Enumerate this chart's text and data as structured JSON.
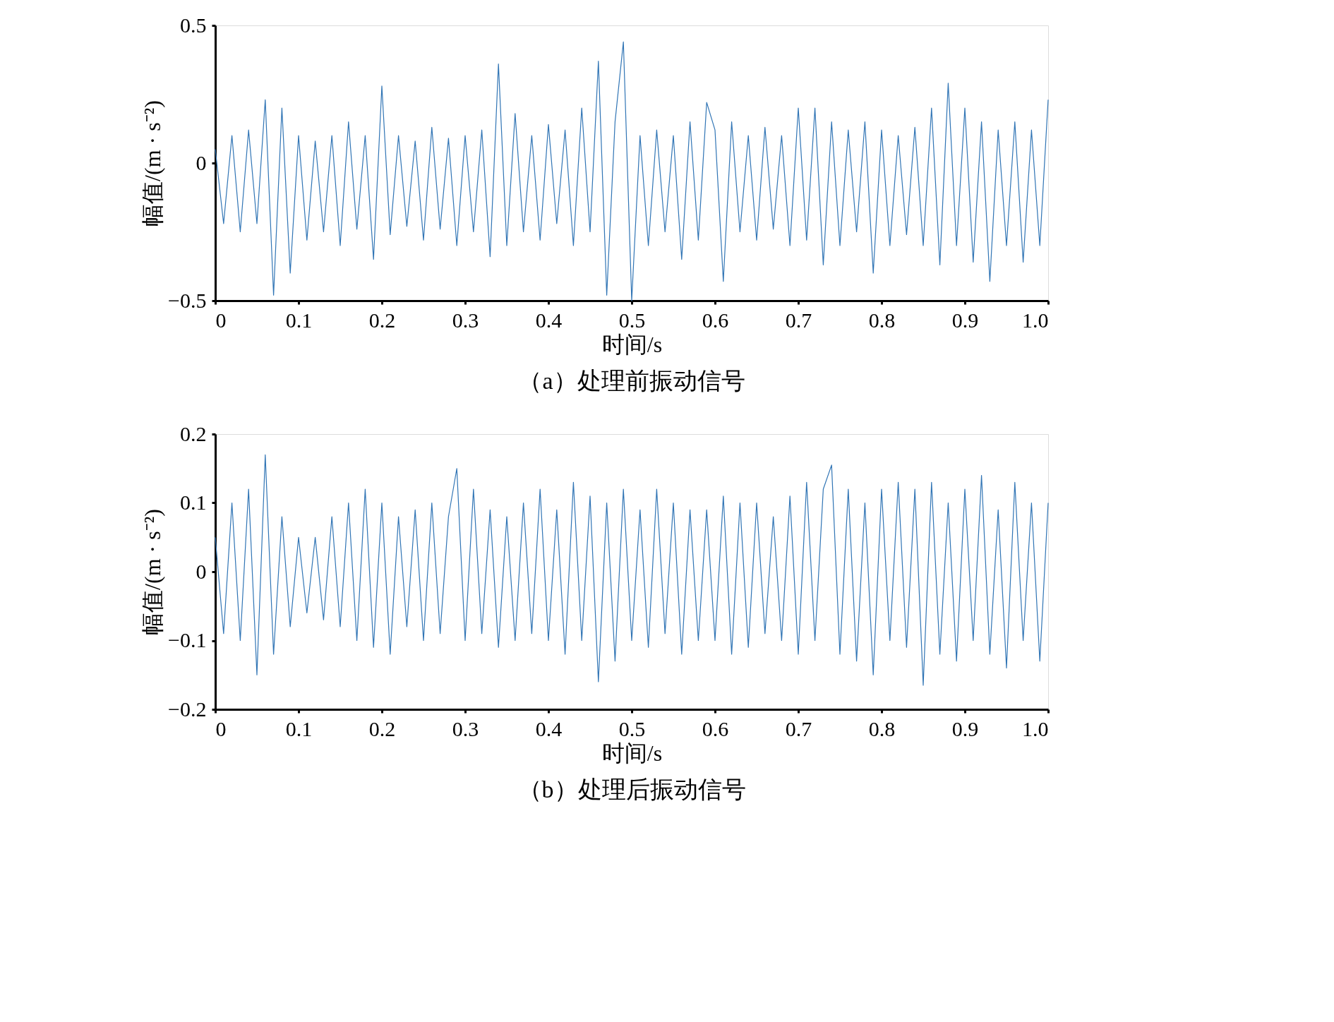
{
  "chart_data": [
    {
      "type": "line",
      "title": "（a）处理前振动信号",
      "xlabel": "时间/s",
      "ylabel": "幅值/(m · s⁻²)",
      "x": [
        0.0,
        0.01,
        0.02,
        0.03,
        0.04,
        0.05,
        0.06,
        0.07,
        0.08,
        0.09,
        0.1,
        0.11,
        0.12,
        0.13,
        0.14,
        0.15,
        0.16,
        0.17,
        0.18,
        0.19,
        0.2,
        0.21,
        0.22,
        0.23,
        0.24,
        0.25,
        0.26,
        0.27,
        0.28,
        0.29,
        0.3,
        0.31,
        0.32,
        0.33,
        0.34,
        0.35,
        0.36,
        0.37,
        0.38,
        0.39,
        0.4,
        0.41,
        0.42,
        0.43,
        0.44,
        0.45,
        0.46,
        0.47,
        0.48,
        0.49,
        0.5,
        0.51,
        0.52,
        0.53,
        0.54,
        0.55,
        0.56,
        0.57,
        0.58,
        0.59,
        0.6,
        0.61,
        0.62,
        0.63,
        0.64,
        0.65,
        0.66,
        0.67,
        0.68,
        0.69,
        0.7,
        0.71,
        0.72,
        0.73,
        0.74,
        0.75,
        0.76,
        0.77,
        0.78,
        0.79,
        0.8,
        0.81,
        0.82,
        0.83,
        0.84,
        0.85,
        0.86,
        0.87,
        0.88,
        0.89,
        0.9,
        0.91,
        0.92,
        0.93,
        0.94,
        0.95,
        0.96,
        0.97,
        0.98,
        0.99,
        1.0
      ],
      "series": [
        {
          "color": "#3175b5",
          "values": [
            0.05,
            -0.22,
            0.1,
            -0.25,
            0.12,
            -0.22,
            0.23,
            -0.48,
            0.2,
            -0.4,
            0.1,
            -0.28,
            0.08,
            -0.25,
            0.1,
            -0.3,
            0.15,
            -0.24,
            0.1,
            -0.35,
            0.28,
            -0.26,
            0.1,
            -0.23,
            0.08,
            -0.28,
            0.13,
            -0.24,
            0.09,
            -0.3,
            0.1,
            -0.25,
            0.12,
            -0.34,
            0.36,
            -0.3,
            0.18,
            -0.25,
            0.1,
            -0.28,
            0.14,
            -0.22,
            0.12,
            -0.3,
            0.2,
            -0.25,
            0.37,
            -0.48,
            0.15,
            0.44,
            -0.5,
            0.1,
            -0.3,
            0.12,
            -0.25,
            0.1,
            -0.35,
            0.15,
            -0.28,
            0.22,
            0.12,
            -0.43,
            0.15,
            -0.25,
            0.1,
            -0.28,
            0.13,
            -0.24,
            0.1,
            -0.3,
            0.2,
            -0.28,
            0.2,
            -0.37,
            0.15,
            -0.3,
            0.12,
            -0.25,
            0.15,
            -0.4,
            0.12,
            -0.3,
            0.1,
            -0.26,
            0.13,
            -0.3,
            0.2,
            -0.37,
            0.29,
            -0.3,
            0.2,
            -0.36,
            0.15,
            -0.43,
            0.12,
            -0.3,
            0.15,
            -0.36,
            0.12,
            -0.3,
            0.23
          ]
        }
      ],
      "xlim": [
        0,
        1
      ],
      "xticks": [
        0,
        0.1,
        0.2,
        0.3,
        0.4,
        0.5,
        0.6,
        0.7,
        0.8,
        0.9,
        {
          "value": 1,
          "label": "1.0"
        }
      ],
      "ylim": [
        -0.5,
        0.5
      ],
      "yticks": [
        -0.5,
        0,
        0.5
      ],
      "grid": false
    },
    {
      "type": "line",
      "title": "（b）处理后振动信号",
      "xlabel": "时间/s",
      "ylabel": "幅值/(m · s⁻²)",
      "x": [
        0.0,
        0.01,
        0.02,
        0.03,
        0.04,
        0.05,
        0.06,
        0.07,
        0.08,
        0.09,
        0.1,
        0.11,
        0.12,
        0.13,
        0.14,
        0.15,
        0.16,
        0.17,
        0.18,
        0.19,
        0.2,
        0.21,
        0.22,
        0.23,
        0.24,
        0.25,
        0.26,
        0.27,
        0.28,
        0.29,
        0.3,
        0.31,
        0.32,
        0.33,
        0.34,
        0.35,
        0.36,
        0.37,
        0.38,
        0.39,
        0.4,
        0.41,
        0.42,
        0.43,
        0.44,
        0.45,
        0.46,
        0.47,
        0.48,
        0.49,
        0.5,
        0.51,
        0.52,
        0.53,
        0.54,
        0.55,
        0.56,
        0.57,
        0.58,
        0.59,
        0.6,
        0.61,
        0.62,
        0.63,
        0.64,
        0.65,
        0.66,
        0.67,
        0.68,
        0.69,
        0.7,
        0.71,
        0.72,
        0.73,
        0.74,
        0.75,
        0.76,
        0.77,
        0.78,
        0.79,
        0.8,
        0.81,
        0.82,
        0.83,
        0.84,
        0.85,
        0.86,
        0.87,
        0.88,
        0.89,
        0.9,
        0.91,
        0.92,
        0.93,
        0.94,
        0.95,
        0.96,
        0.97,
        0.98,
        0.99,
        1.0
      ],
      "series": [
        {
          "color": "#3175b5",
          "values": [
            0.05,
            -0.09,
            0.1,
            -0.1,
            0.12,
            -0.15,
            0.17,
            -0.12,
            0.08,
            -0.08,
            0.05,
            -0.06,
            0.05,
            -0.07,
            0.08,
            -0.08,
            0.1,
            -0.1,
            0.12,
            -0.11,
            0.1,
            -0.12,
            0.08,
            -0.08,
            0.09,
            -0.1,
            0.1,
            -0.09,
            0.08,
            0.15,
            -0.1,
            0.12,
            -0.09,
            0.09,
            -0.11,
            0.08,
            -0.1,
            0.1,
            -0.09,
            0.12,
            -0.1,
            0.09,
            -0.12,
            0.13,
            -0.1,
            0.11,
            -0.16,
            0.1,
            -0.13,
            0.12,
            -0.1,
            0.09,
            -0.11,
            0.12,
            -0.09,
            0.1,
            -0.12,
            0.09,
            -0.1,
            0.09,
            -0.1,
            0.11,
            -0.12,
            0.1,
            -0.11,
            0.1,
            -0.09,
            0.08,
            -0.1,
            0.11,
            -0.12,
            0.13,
            -0.1,
            0.12,
            0.155,
            -0.12,
            0.12,
            -0.13,
            0.1,
            -0.15,
            0.12,
            -0.1,
            0.13,
            -0.11,
            0.12,
            -0.165,
            0.13,
            -0.12,
            0.1,
            -0.13,
            0.12,
            -0.1,
            0.14,
            -0.12,
            0.09,
            -0.14,
            0.13,
            -0.1,
            0.1,
            -0.13,
            0.1
          ]
        }
      ],
      "xlim": [
        0,
        1
      ],
      "xticks": [
        0,
        0.1,
        0.2,
        0.3,
        0.4,
        0.5,
        0.6,
        0.7,
        0.8,
        0.9,
        {
          "value": 1,
          "label": "1.0"
        }
      ],
      "ylim": [
        -0.2,
        0.2
      ],
      "yticks": [
        -0.2,
        -0.1,
        0,
        0.1,
        0.2
      ],
      "grid": false
    }
  ]
}
